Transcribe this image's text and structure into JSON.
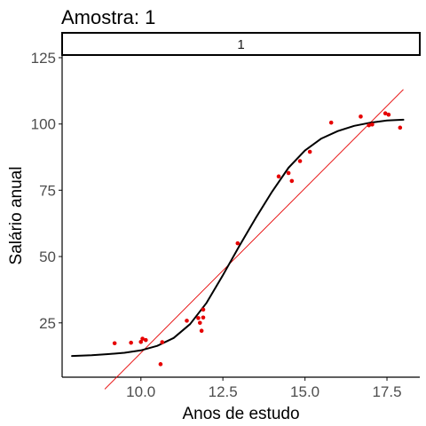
{
  "chart_data": {
    "type": "scatter",
    "title": "Amostra: 1",
    "facet_label": "1",
    "xlabel": "Anos de estudo",
    "ylabel": "Salário anual",
    "xlim": [
      7.6,
      18.5
    ],
    "ylim": [
      4.5,
      126
    ],
    "x_ticks": [
      {
        "value": 10.0,
        "label": "10.0"
      },
      {
        "value": 12.5,
        "label": "12.5"
      },
      {
        "value": 15.0,
        "label": "15.0"
      },
      {
        "value": 17.5,
        "label": "17.5"
      }
    ],
    "y_ticks": [
      {
        "value": 25,
        "label": "25"
      },
      {
        "value": 50,
        "label": "50"
      },
      {
        "value": 75,
        "label": "75"
      },
      {
        "value": 100,
        "label": "100"
      },
      {
        "value": 125,
        "label": "125"
      }
    ],
    "grid": false,
    "colors": {
      "points": "#e60000",
      "linear_fit": "#e60000",
      "curve": "#000000"
    },
    "points": [
      {
        "x": 9.2,
        "y": 17.3
      },
      {
        "x": 9.7,
        "y": 17.5
      },
      {
        "x": 10.0,
        "y": 17.8
      },
      {
        "x": 10.05,
        "y": 19.0
      },
      {
        "x": 10.15,
        "y": 18.5
      },
      {
        "x": 10.6,
        "y": 9.4
      },
      {
        "x": 10.65,
        "y": 17.7
      },
      {
        "x": 11.4,
        "y": 25.8
      },
      {
        "x": 11.75,
        "y": 26.8
      },
      {
        "x": 11.8,
        "y": 25.0
      },
      {
        "x": 11.85,
        "y": 22.0
      },
      {
        "x": 11.9,
        "y": 27.0
      },
      {
        "x": 11.9,
        "y": 30.0
      },
      {
        "x": 12.95,
        "y": 55.0
      },
      {
        "x": 14.2,
        "y": 80.2
      },
      {
        "x": 14.5,
        "y": 81.5
      },
      {
        "x": 14.6,
        "y": 78.5
      },
      {
        "x": 14.85,
        "y": 86.0
      },
      {
        "x": 15.15,
        "y": 89.5
      },
      {
        "x": 15.8,
        "y": 100.5
      },
      {
        "x": 16.7,
        "y": 102.8
      },
      {
        "x": 16.95,
        "y": 99.5
      },
      {
        "x": 17.05,
        "y": 99.8
      },
      {
        "x": 17.45,
        "y": 104.0
      },
      {
        "x": 17.55,
        "y": 103.5
      },
      {
        "x": 17.9,
        "y": 98.6
      }
    ],
    "linear_fit": {
      "x": [
        8.9,
        18.0
      ],
      "y": [
        0.0,
        113.0
      ]
    },
    "curve": {
      "x": [
        7.9,
        8.5,
        9.0,
        9.5,
        10.0,
        10.5,
        11.0,
        11.5,
        12.0,
        12.5,
        13.0,
        13.5,
        14.0,
        14.5,
        15.0,
        15.5,
        16.0,
        16.5,
        17.0,
        17.5,
        18.0
      ],
      "y": [
        12.5,
        12.8,
        13.2,
        13.7,
        14.6,
        16.3,
        19.3,
        24.5,
        32.5,
        43.0,
        54.0,
        64.5,
        74.5,
        83.5,
        90.0,
        94.5,
        97.3,
        99.3,
        100.5,
        101.3,
        101.6
      ]
    }
  }
}
